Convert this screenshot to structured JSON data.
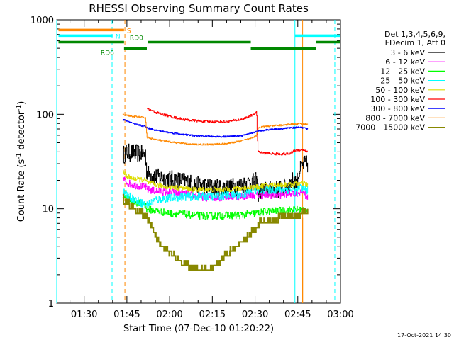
{
  "chart_data": {
    "type": "line",
    "title": "RHESSI Observing Summary Count Rates",
    "xlabel": "Start Time (07-Dec-10 01:20:22)",
    "ylabel": "Count Rate (s",
    "ylabel_sup1": "-1",
    "ylabel_mid": " detector",
    "ylabel_sup2": "-1",
    "ylabel_end": ")",
    "yscale": "log",
    "ylim": [
      1,
      1000
    ],
    "xlim_min": [
      80.37,
      180
    ],
    "y_ticks": [
      "1",
      "10",
      "100",
      "1000"
    ],
    "x_ticks": [
      {
        "label": "01:30",
        "min": 90
      },
      {
        "label": "01:45",
        "min": 105
      },
      {
        "label": "02:00",
        "min": 120
      },
      {
        "label": "02:15",
        "min": 135
      },
      {
        "label": "02:30",
        "min": 150
      },
      {
        "label": "02:45",
        "min": 165
      },
      {
        "label": "03:00",
        "min": 180
      }
    ],
    "legend_header": [
      "Det 1,3,4,5,6,9,",
      "FDecim 1, Att 0"
    ],
    "legend_position": "right",
    "series": [
      {
        "name": "3 - 6 keV",
        "color": "#000000",
        "x": [
          103.5,
          105,
          107,
          111.5,
          112,
          115,
          120,
          125,
          127.3,
          130,
          135,
          140,
          145,
          148,
          150.5,
          151,
          153,
          157,
          160,
          162,
          163.5,
          164.5,
          165.5,
          167,
          168.5
        ],
        "y": [
          38,
          40,
          40,
          38,
          24,
          22,
          21,
          20,
          19,
          18,
          17,
          17,
          18,
          19,
          20,
          15,
          16,
          16,
          17,
          18,
          21,
          19,
          25,
          30,
          30
        ]
      },
      {
        "name": "6 - 12 keV",
        "color": "#ff00ff",
        "x": [
          103.5,
          105,
          107,
          111.5,
          112,
          115,
          120,
          125,
          127.3,
          130,
          135,
          140,
          145,
          148,
          150.5,
          151,
          153,
          157,
          160,
          162,
          163.5,
          164.5,
          165.5,
          167,
          168.5
        ],
        "y": [
          21,
          19,
          18,
          17,
          16,
          15.5,
          15,
          14.5,
          14,
          13.5,
          13,
          13.5,
          13.5,
          14,
          14,
          14,
          14,
          14,
          14,
          14.5,
          15,
          14.5,
          15,
          15,
          13
        ]
      },
      {
        "name": "12 - 25 keV",
        "color": "#00ff00",
        "x": [
          103.5,
          105,
          107,
          111.5,
          112,
          115,
          120,
          125,
          127.3,
          130,
          135,
          140,
          145,
          148,
          150.5,
          151,
          153,
          157,
          160,
          162,
          163.5,
          164.5,
          165.5,
          167,
          168.5
        ],
        "y": [
          14,
          13,
          12,
          11,
          10,
          9.5,
          9,
          8.8,
          8.6,
          8.5,
          8.4,
          8.5,
          8.6,
          8.8,
          9,
          9,
          9.3,
          9.5,
          9.6,
          9.7,
          9.8,
          9.8,
          9.8,
          9.8,
          9.8
        ]
      },
      {
        "name": "25 - 50 keV",
        "color": "#00ffff",
        "x": [
          103.5,
          105,
          107,
          111.5,
          112,
          115,
          120,
          125,
          127.3,
          130,
          135,
          140,
          145,
          148,
          150.5,
          151,
          153,
          157,
          160,
          162,
          163.5,
          164.5,
          165.5,
          167,
          168.5
        ],
        "y": [
          15,
          14,
          13,
          11,
          11,
          12.5,
          13,
          13.5,
          13.5,
          13.5,
          13.5,
          14,
          14,
          15,
          16,
          16,
          16,
          16,
          16,
          16,
          16,
          15,
          17,
          16,
          16
        ]
      },
      {
        "name": "50 - 100 keV",
        "color": "#dddd00",
        "x": [
          103.5,
          105,
          107,
          111.5,
          112,
          115,
          120,
          125,
          127.3,
          130,
          135,
          140,
          145,
          148,
          150.5,
          151,
          153,
          157,
          160,
          162,
          163.5,
          164.5,
          165.5,
          167,
          168.5
        ],
        "y": [
          25,
          22,
          21,
          20,
          19,
          18,
          17,
          16.5,
          16,
          16,
          16,
          16,
          16.5,
          17,
          17,
          17,
          17.5,
          18,
          18,
          18,
          18,
          18.5,
          18.5,
          18.5,
          18
        ]
      },
      {
        "name": "100 - 300 keV",
        "color": "#ff0000",
        "x": [
          112,
          115,
          120,
          125,
          130,
          135,
          140,
          145,
          148,
          150.5,
          151,
          153,
          157,
          160,
          162,
          163.5,
          164.5,
          165.5,
          167,
          168.5
        ],
        "y": [
          115,
          105,
          95,
          88,
          85,
          83,
          84,
          88,
          95,
          105,
          40,
          39,
          38,
          38,
          38,
          41,
          42,
          42,
          42,
          40
        ]
      },
      {
        "name": "300 - 800 keV",
        "color": "#0000ff",
        "x": [
          103.5,
          105,
          107,
          111.5,
          112,
          115,
          120,
          125,
          127.3,
          130,
          135,
          140,
          145,
          148,
          150.5,
          151,
          153,
          157,
          160,
          162,
          163.5,
          164.5,
          165.5,
          167,
          168.5
        ],
        "y": [
          88,
          85,
          80,
          74,
          72,
          68,
          64,
          61,
          60,
          59,
          58,
          58,
          59,
          62,
          66,
          66,
          68,
          70,
          71,
          72,
          72,
          73,
          73,
          72,
          70
        ]
      },
      {
        "name": "800 - 7000 keV",
        "color": "#ff8800",
        "x": [
          103.5,
          105,
          107,
          111.5,
          112,
          115,
          120,
          125,
          127.3,
          130,
          135,
          140,
          145,
          148,
          150.5,
          151,
          153,
          157,
          160,
          162,
          163.5,
          164.5,
          165.5,
          167,
          168.5
        ],
        "y": [
          99,
          98,
          95,
          92,
          57,
          54,
          51,
          49,
          48,
          48,
          48,
          49,
          52,
          55,
          60,
          72,
          74,
          76,
          77,
          78,
          79,
          79,
          80,
          79,
          78
        ]
      },
      {
        "name": "7000 - 15000 keV",
        "color": "#888800",
        "x": [
          103.5,
          105,
          107,
          109,
          111.5,
          113,
          115,
          117,
          120,
          122,
          125,
          127.3,
          130,
          132,
          135,
          137,
          140,
          142,
          145,
          147,
          150.5,
          152,
          153,
          156,
          160,
          162,
          163.5,
          165,
          167,
          168.5
        ],
        "y": [
          12,
          11,
          10,
          9,
          8,
          7,
          5,
          4,
          3.3,
          3,
          2.5,
          2.3,
          2.3,
          2.3,
          2.3,
          2.5,
          3.3,
          3.4,
          4.5,
          4.7,
          6,
          7,
          7,
          7.2,
          7.8,
          8,
          8,
          8.2,
          8.6,
          8.5
        ]
      }
    ],
    "annotations": [
      {
        "text": "S",
        "color": "#ff8800"
      },
      {
        "text": "N",
        "color": "#00ffff"
      },
      {
        "text": "RD0",
        "color": "#008800"
      },
      {
        "text": "RD6",
        "color": "#008800"
      }
    ],
    "flag_bars": {
      "S": {
        "color": "#ff8800",
        "level": 780,
        "segments": [
          [
            81,
            104
          ]
        ]
      },
      "N": {
        "color": "#00ffff",
        "level": 680,
        "segments": [
          [
            81,
            100
          ],
          [
            164,
            180
          ]
        ]
      },
      "RD0": {
        "color": "#008800",
        "level": 580,
        "segments": [
          [
            81,
            104
          ],
          [
            112.5,
            148.5
          ],
          [
            171.5,
            180
          ]
        ]
      },
      "RD6": {
        "color": "#008800",
        "level": 495,
        "segments": [
          [
            104,
            112
          ],
          [
            148.5,
            171.5
          ]
        ]
      }
    },
    "vertical_markers": [
      {
        "min": 80.37,
        "color": "#00ffff",
        "style": "solid"
      },
      {
        "min": 99.8,
        "color": "#00ffff",
        "style": "dashed"
      },
      {
        "min": 104.3,
        "color": "#ff8800",
        "style": "dashed"
      },
      {
        "min": 164.0,
        "color": "#00ffff",
        "style": "solid"
      },
      {
        "min": 166.7,
        "color": "#ff8800",
        "style": "solid"
      },
      {
        "min": 178.0,
        "color": "#00ffff",
        "style": "dashed"
      }
    ]
  },
  "footer": {
    "timestamp": "17-Oct-2021 14:30"
  }
}
